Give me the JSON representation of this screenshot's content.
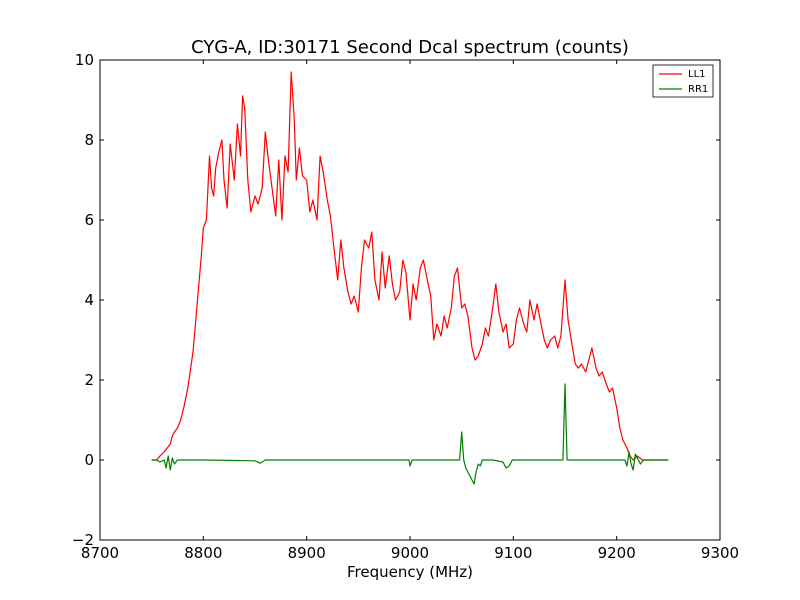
{
  "chart_data": {
    "type": "line",
    "title": "CYG-A, ID:30171 Second Dcal spectrum (counts)",
    "xlabel": "Frequency (MHz)",
    "ylabel": "",
    "xlim": [
      8700,
      9300
    ],
    "ylim": [
      -2,
      10
    ],
    "xticks": [
      8700,
      8800,
      8900,
      9000,
      9100,
      9200,
      9300
    ],
    "yticks": [
      -2,
      0,
      2,
      4,
      6,
      8,
      10
    ],
    "xtick_labels": [
      "8700",
      "8800",
      "8900",
      "9000",
      "9100",
      "9200",
      "9300"
    ],
    "ytick_labels": [
      "−2",
      "0",
      "2",
      "4",
      "6",
      "8",
      "10"
    ],
    "grid": false,
    "legend_position": "top-right",
    "series": [
      {
        "name": "LL1",
        "color": "#ff0000",
        "points": [
          [
            8750,
            0.0
          ],
          [
            8755,
            0.0
          ],
          [
            8758,
            0.1
          ],
          [
            8762,
            0.2
          ],
          [
            8765,
            0.3
          ],
          [
            8768,
            0.4
          ],
          [
            8770,
            0.6
          ],
          [
            8772,
            0.7
          ],
          [
            8775,
            0.8
          ],
          [
            8778,
            1.0
          ],
          [
            8781,
            1.3
          ],
          [
            8785,
            1.8
          ],
          [
            8790,
            2.7
          ],
          [
            8795,
            4.2
          ],
          [
            8798,
            5.1
          ],
          [
            8800,
            5.8
          ],
          [
            8803,
            6.0
          ],
          [
            8806,
            7.6
          ],
          [
            8808,
            6.8
          ],
          [
            8810,
            6.6
          ],
          [
            8812,
            7.3
          ],
          [
            8815,
            7.7
          ],
          [
            8818,
            8.0
          ],
          [
            8820,
            7.0
          ],
          [
            8823,
            6.3
          ],
          [
            8826,
            7.9
          ],
          [
            8830,
            7.0
          ],
          [
            8833,
            8.4
          ],
          [
            8836,
            7.6
          ],
          [
            8838,
            9.1
          ],
          [
            8840,
            8.8
          ],
          [
            8843,
            7.0
          ],
          [
            8846,
            6.2
          ],
          [
            8850,
            6.6
          ],
          [
            8853,
            6.4
          ],
          [
            8857,
            6.8
          ],
          [
            8860,
            8.2
          ],
          [
            8863,
            7.5
          ],
          [
            8866,
            6.9
          ],
          [
            8870,
            6.1
          ],
          [
            8873,
            7.5
          ],
          [
            8876,
            6.0
          ],
          [
            8879,
            7.6
          ],
          [
            8882,
            7.2
          ],
          [
            8885,
            9.7
          ],
          [
            8888,
            8.5
          ],
          [
            8890,
            7.0
          ],
          [
            8893,
            7.8
          ],
          [
            8896,
            7.1
          ],
          [
            8900,
            7.0
          ],
          [
            8903,
            6.2
          ],
          [
            8906,
            6.5
          ],
          [
            8910,
            6.0
          ],
          [
            8913,
            7.6
          ],
          [
            8916,
            7.2
          ],
          [
            8920,
            6.5
          ],
          [
            8923,
            6.1
          ],
          [
            8926,
            5.4
          ],
          [
            8930,
            4.5
          ],
          [
            8933,
            5.5
          ],
          [
            8936,
            4.8
          ],
          [
            8940,
            4.2
          ],
          [
            8943,
            3.9
          ],
          [
            8946,
            4.1
          ],
          [
            8950,
            3.7
          ],
          [
            8953,
            4.8
          ],
          [
            8956,
            5.5
          ],
          [
            8960,
            5.3
          ],
          [
            8963,
            5.7
          ],
          [
            8966,
            4.5
          ],
          [
            8970,
            4.0
          ],
          [
            8973,
            5.2
          ],
          [
            8976,
            4.3
          ],
          [
            8980,
            5.1
          ],
          [
            8983,
            4.4
          ],
          [
            8986,
            4.0
          ],
          [
            8990,
            4.2
          ],
          [
            8993,
            5.0
          ],
          [
            8996,
            4.7
          ],
          [
            9000,
            3.5
          ],
          [
            9003,
            4.4
          ],
          [
            9006,
            4.0
          ],
          [
            9010,
            4.8
          ],
          [
            9013,
            5.0
          ],
          [
            9016,
            4.6
          ],
          [
            9020,
            4.1
          ],
          [
            9023,
            3.0
          ],
          [
            9026,
            3.4
          ],
          [
            9030,
            3.1
          ],
          [
            9033,
            3.6
          ],
          [
            9036,
            3.3
          ],
          [
            9040,
            3.8
          ],
          [
            9043,
            4.6
          ],
          [
            9046,
            4.8
          ],
          [
            9050,
            3.8
          ],
          [
            9053,
            3.9
          ],
          [
            9056,
            3.6
          ],
          [
            9060,
            2.8
          ],
          [
            9063,
            2.5
          ],
          [
            9066,
            2.6
          ],
          [
            9070,
            2.9
          ],
          [
            9073,
            3.3
          ],
          [
            9076,
            3.1
          ],
          [
            9080,
            3.8
          ],
          [
            9083,
            4.4
          ],
          [
            9086,
            3.7
          ],
          [
            9090,
            3.2
          ],
          [
            9093,
            3.4
          ],
          [
            9096,
            2.8
          ],
          [
            9100,
            2.9
          ],
          [
            9103,
            3.5
          ],
          [
            9106,
            3.8
          ],
          [
            9110,
            3.4
          ],
          [
            9113,
            3.2
          ],
          [
            9116,
            4.0
          ],
          [
            9120,
            3.5
          ],
          [
            9123,
            3.9
          ],
          [
            9126,
            3.5
          ],
          [
            9130,
            3.0
          ],
          [
            9133,
            2.8
          ],
          [
            9136,
            3.0
          ],
          [
            9140,
            3.1
          ],
          [
            9143,
            2.8
          ],
          [
            9146,
            3.1
          ],
          [
            9150,
            4.5
          ],
          [
            9153,
            3.5
          ],
          [
            9156,
            3.0
          ],
          [
            9160,
            2.4
          ],
          [
            9163,
            2.3
          ],
          [
            9166,
            2.4
          ],
          [
            9170,
            2.2
          ],
          [
            9173,
            2.5
          ],
          [
            9176,
            2.8
          ],
          [
            9180,
            2.3
          ],
          [
            9183,
            2.1
          ],
          [
            9186,
            2.2
          ],
          [
            9190,
            1.9
          ],
          [
            9193,
            1.7
          ],
          [
            9196,
            1.8
          ],
          [
            9200,
            1.3
          ],
          [
            9203,
            0.8
          ],
          [
            9206,
            0.5
          ],
          [
            9210,
            0.3
          ],
          [
            9213,
            0.1
          ],
          [
            9216,
            0.0
          ],
          [
            9220,
            0.1
          ],
          [
            9225,
            0.0
          ],
          [
            9230,
            0.0
          ],
          [
            9240,
            0.0
          ],
          [
            9250,
            0.0
          ]
        ]
      },
      {
        "name": "RR1",
        "color": "#008000",
        "points": [
          [
            8750,
            0.0
          ],
          [
            8755,
            0.0
          ],
          [
            8758,
            -0.05
          ],
          [
            8762,
            0.0
          ],
          [
            8764,
            -0.2
          ],
          [
            8766,
            0.1
          ],
          [
            8768,
            -0.25
          ],
          [
            8770,
            0.05
          ],
          [
            8772,
            -0.1
          ],
          [
            8775,
            0.0
          ],
          [
            8780,
            0.0
          ],
          [
            8800,
            0.0
          ],
          [
            8850,
            -0.02
          ],
          [
            8855,
            -0.08
          ],
          [
            8860,
            0.0
          ],
          [
            8900,
            0.0
          ],
          [
            8950,
            0.0
          ],
          [
            8999,
            0.0
          ],
          [
            9000,
            -0.15
          ],
          [
            9002,
            0.0
          ],
          [
            9048,
            0.0
          ],
          [
            9050,
            0.7
          ],
          [
            9052,
            0.0
          ],
          [
            9054,
            -0.2
          ],
          [
            9057,
            -0.35
          ],
          [
            9060,
            -0.5
          ],
          [
            9062,
            -0.6
          ],
          [
            9064,
            -0.3
          ],
          [
            9066,
            -0.1
          ],
          [
            9068,
            -0.15
          ],
          [
            9070,
            0.0
          ],
          [
            9080,
            0.0
          ],
          [
            9090,
            -0.05
          ],
          [
            9093,
            -0.2
          ],
          [
            9096,
            -0.15
          ],
          [
            9099,
            0.0
          ],
          [
            9148,
            0.0
          ],
          [
            9150,
            1.9
          ],
          [
            9152,
            0.0
          ],
          [
            9200,
            0.0
          ],
          [
            9208,
            0.0
          ],
          [
            9210,
            -0.15
          ],
          [
            9212,
            0.2
          ],
          [
            9214,
            -0.1
          ],
          [
            9216,
            -0.25
          ],
          [
            9218,
            0.15
          ],
          [
            9220,
            0.05
          ],
          [
            9223,
            -0.1
          ],
          [
            9226,
            0.0
          ],
          [
            9230,
            0.0
          ],
          [
            9250,
            0.0
          ]
        ]
      }
    ]
  }
}
